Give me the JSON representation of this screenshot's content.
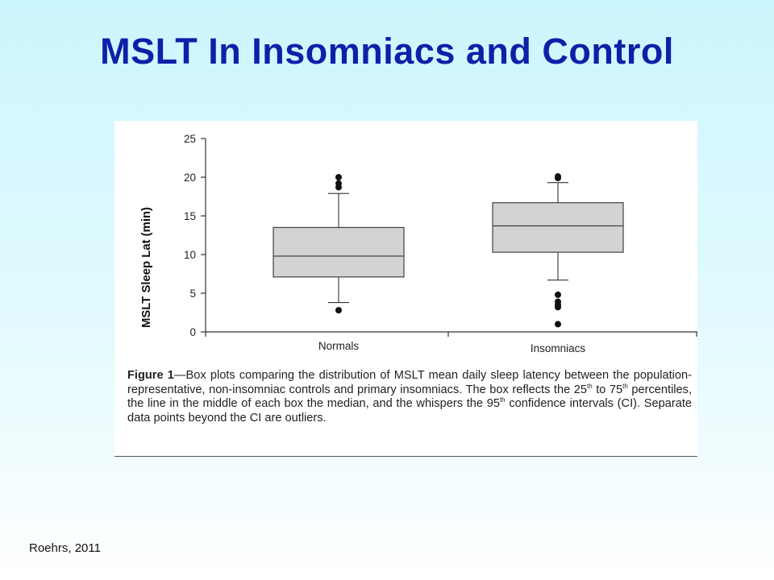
{
  "slide": {
    "title": "MSLT In Insomniacs and Control",
    "footer": "Roehrs, 2011"
  },
  "caption": {
    "label": "Figure 1",
    "part1": "—Box plots comparing the distribution of MSLT mean daily sleep latency between the population-representative, non-insomniac controls and primary insomniacs. The box reflects the 25",
    "sup1": "th",
    "part2": " to 75",
    "sup2": "th",
    "part3": " percentiles, the line in the middle of each box the median, and the whispers the 95",
    "sup3": "th",
    "part4": " confidence intervals (CI). Separate data points beyond the CI are outliers."
  },
  "colors": {
    "title": "#0f1fa8",
    "box_fill": "#d3d3d3",
    "stroke": "#333333",
    "outlier": "#111111"
  },
  "chart_data": {
    "type": "box",
    "title": "",
    "xlabel": "",
    "ylabel": "MSLT Sleep Lat (min)",
    "ylim": [
      0,
      25
    ],
    "yticks": [
      0,
      5,
      10,
      15,
      20,
      25
    ],
    "grid": false,
    "categories": [
      "Normals",
      "Insomniacs"
    ],
    "boxes": [
      {
        "category": "Normals",
        "whisker_low": 3.8,
        "q1": 7.1,
        "median": 9.8,
        "q3": 13.5,
        "whisker_high": 17.9,
        "outliers": [
          2.8,
          18.7,
          19.2,
          20.0
        ]
      },
      {
        "category": "Insomniacs",
        "whisker_low": 6.7,
        "q1": 10.3,
        "median": 13.7,
        "q3": 16.7,
        "whisker_high": 19.3,
        "outliers": [
          1.0,
          3.2,
          3.5,
          3.9,
          4.8,
          19.9,
          20.1
        ]
      }
    ]
  }
}
